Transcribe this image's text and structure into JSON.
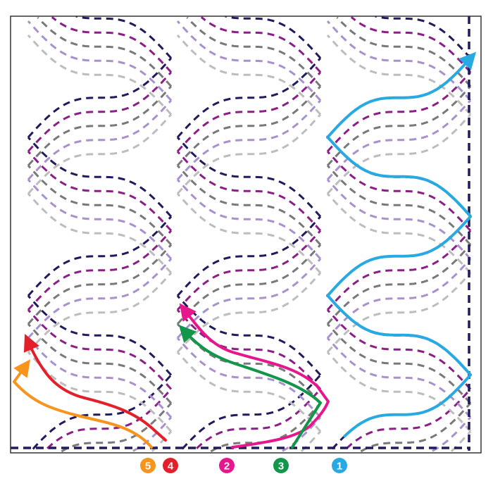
{
  "thread_colors": [
    "#1f1b5c",
    "#8b1f87",
    "#797979",
    "#a891cc",
    "#bdbdbd"
  ],
  "border_color": "#1f1b5c",
  "paths": [
    {
      "number": "1",
      "color": "#29a9e1"
    },
    {
      "number": "2",
      "color": "#e6178c"
    },
    {
      "number": "3",
      "color": "#12964a"
    },
    {
      "number": "4",
      "color": "#e3202a"
    },
    {
      "number": "5",
      "color": "#f7941d"
    }
  ],
  "legend_order": [
    "5",
    "4",
    "2",
    "3",
    "1"
  ]
}
